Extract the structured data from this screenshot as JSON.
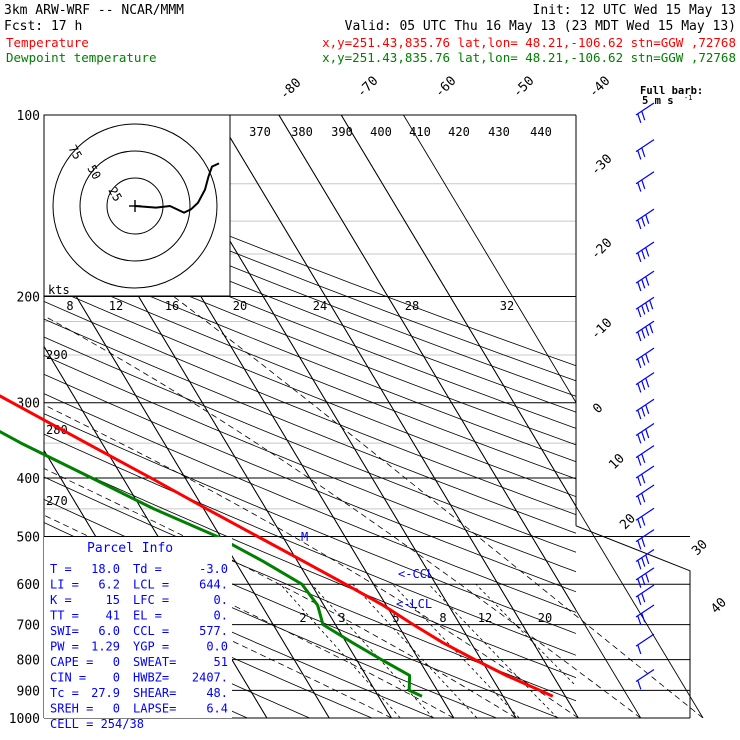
{
  "header": {
    "model": "3km ARW-WRF -- NCAR/MMM",
    "init": "Init: 12 UTC Wed 15 May 13",
    "fcst": "Fcst:    17 h",
    "valid": "Valid: 05 UTC Thu 16 May 13 (23 MDT Wed 15 May 13)",
    "temp_label": "Temperature",
    "temp_info": "x,y=251.43,835.76   lat,lon= 48.21,-106.62  stn=GGW ,72768",
    "dew_label": "Dewpoint temperature",
    "dew_info": "x,y=251.43,835.76   lat,lon= 48.21,-106.62  stn=GGW ,72768"
  },
  "colors": {
    "temperature": "#ff0000",
    "dewpoint": "#008000",
    "parcel_text": "#0000ff",
    "wind_barbs": "#0000ff",
    "grid": "#000000"
  },
  "chart_data": {
    "type": "skew-t",
    "y_axis": "pressure (mb), log scale",
    "pressure_levels": [
      100,
      200,
      300,
      400,
      500,
      600,
      700,
      800,
      900,
      1000
    ],
    "pressure_labels": [
      "100",
      "200",
      "300",
      "400",
      "500",
      "600",
      "700",
      "800",
      "900",
      "1000"
    ],
    "isotherm_labels": [
      "-80",
      "-70",
      "-60",
      "-50",
      "-40",
      "-30",
      "-20",
      "-10",
      "0",
      "10",
      "20",
      "30",
      "40"
    ],
    "theta_labels": [
      "370",
      "380",
      "390",
      "400",
      "410",
      "420",
      "430",
      "440"
    ],
    "theta_low_labels": [
      "290",
      "280",
      "270"
    ],
    "mixing_ratio_labels": [
      "2",
      "3",
      "5",
      "8",
      "12",
      "20"
    ],
    "barb_legend": [
      "Full barb:",
      "5 m s",
      "-1"
    ],
    "ccl_label": "<-CCL",
    "lcl_label": "<-LCL",
    "freezing_marker": "M",
    "temperature": [
      {
        "p": 920,
        "t": 18.0
      },
      {
        "p": 900,
        "t": 16.5
      },
      {
        "p": 850,
        "t": 12.5
      },
      {
        "p": 800,
        "t": 9.0
      },
      {
        "p": 750,
        "t": 5.5
      },
      {
        "p": 700,
        "t": 2.5
      },
      {
        "p": 650,
        "t": -0.5
      },
      {
        "p": 600,
        "t": -4.5
      },
      {
        "p": 550,
        "t": -9.0
      },
      {
        "p": 500,
        "t": -14.0
      },
      {
        "p": 450,
        "t": -19.5
      },
      {
        "p": 400,
        "t": -25.5
      },
      {
        "p": 350,
        "t": -32.5
      },
      {
        "p": 300,
        "t": -40.5
      },
      {
        "p": 250,
        "t": -50.0
      },
      {
        "p": 220,
        "t": -56.0
      },
      {
        "p": 200,
        "t": -57.5
      },
      {
        "p": 180,
        "t": -56.5
      },
      {
        "p": 150,
        "t": -54.0
      },
      {
        "p": 130,
        "t": -55.0
      },
      {
        "p": 110,
        "t": -57.0
      },
      {
        "p": 100,
        "t": -58.5
      }
    ],
    "dewpoint": [
      {
        "p": 920,
        "t": -3.0
      },
      {
        "p": 900,
        "t": -4.5
      },
      {
        "p": 850,
        "t": -3.0
      },
      {
        "p": 800,
        "t": -6.0
      },
      {
        "p": 750,
        "t": -9.0
      },
      {
        "p": 700,
        "t": -12.0
      },
      {
        "p": 650,
        "t": -11.0
      },
      {
        "p": 600,
        "t": -11.5
      },
      {
        "p": 550,
        "t": -15.5
      },
      {
        "p": 500,
        "t": -20.5
      },
      {
        "p": 450,
        "t": -28.0
      },
      {
        "p": 400,
        "t": -35.0
      },
      {
        "p": 350,
        "t": -43.0
      },
      {
        "p": 300,
        "t": -51.0
      },
      {
        "p": 250,
        "t": -60.0
      },
      {
        "p": 210,
        "t": -67.0
      },
      {
        "p": 200,
        "t": -68.5
      },
      {
        "p": 170,
        "t": -70.5
      },
      {
        "p": 150,
        "t": -73.0
      },
      {
        "p": 130,
        "t": -76.0
      },
      {
        "p": 110,
        "t": -79.0
      },
      {
        "p": 100,
        "t": -80.5
      }
    ],
    "winds": [
      {
        "p": 100,
        "speed_ms": 10
      },
      {
        "p": 115,
        "speed_ms": 10
      },
      {
        "p": 130,
        "speed_ms": 10
      },
      {
        "p": 150,
        "speed_ms": 15
      },
      {
        "p": 170,
        "speed_ms": 15
      },
      {
        "p": 190,
        "speed_ms": 15
      },
      {
        "p": 210,
        "speed_ms": 20
      },
      {
        "p": 230,
        "speed_ms": 20
      },
      {
        "p": 255,
        "speed_ms": 15
      },
      {
        "p": 280,
        "speed_ms": 15
      },
      {
        "p": 310,
        "speed_ms": 15
      },
      {
        "p": 340,
        "speed_ms": 15
      },
      {
        "p": 370,
        "speed_ms": 10
      },
      {
        "p": 400,
        "speed_ms": 10
      },
      {
        "p": 430,
        "speed_ms": 10
      },
      {
        "p": 470,
        "speed_ms": 10
      },
      {
        "p": 510,
        "speed_ms": 10
      },
      {
        "p": 550,
        "speed_ms": 15
      },
      {
        "p": 590,
        "speed_ms": 15
      },
      {
        "p": 630,
        "speed_ms": 10
      },
      {
        "p": 680,
        "speed_ms": 10
      },
      {
        "p": 760,
        "speed_ms": 5
      },
      {
        "p": 870,
        "speed_ms": 5
      }
    ],
    "hodograph": {
      "rings_kts": [
        "25",
        "50",
        "75"
      ],
      "unit": "kts",
      "points": [
        [
          0,
          0
        ],
        [
          6,
          -1
        ],
        [
          10,
          0
        ],
        [
          14,
          -4
        ],
        [
          16,
          -2
        ],
        [
          18,
          2
        ],
        [
          20,
          10
        ],
        [
          21,
          18
        ],
        [
          22,
          24
        ],
        [
          24,
          26
        ]
      ]
    }
  },
  "parcel": {
    "title": "Parcel Info",
    "rows": [
      [
        "T  =",
        "18.0",
        "Td =",
        "-3.0"
      ],
      [
        "LI =",
        "6.2",
        "LCL =",
        "644."
      ],
      [
        "K  =",
        "15",
        "LFC =",
        "0."
      ],
      [
        "TT =",
        "41",
        "EL  =",
        "0."
      ],
      [
        "SWI=",
        "6.0",
        "CCL =",
        "577."
      ],
      [
        "PW =",
        "1.29",
        "YGP =",
        "0.0"
      ],
      [
        "CAPE =",
        "0",
        "SWEAT=",
        "51"
      ],
      [
        "CIN  =",
        "0",
        "HWBZ=",
        "2407."
      ],
      [
        "Tc   =",
        "27.9",
        "SHEAR=",
        "48."
      ],
      [
        "SREH =",
        "0",
        "LAPSE=",
        "6.4"
      ]
    ],
    "cell": "CELL = 254/38"
  }
}
